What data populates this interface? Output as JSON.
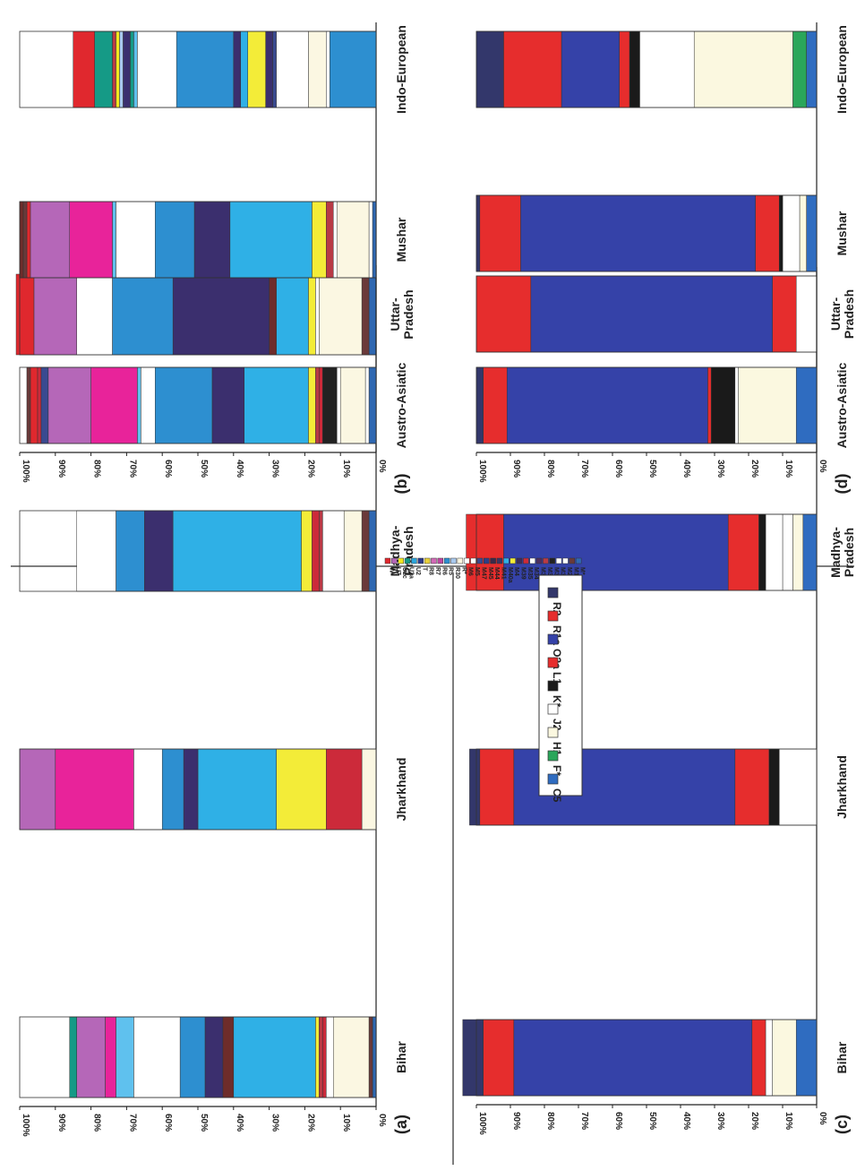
{
  "colors": {
    "W": "#e0282e",
    "U7": "#b567b8",
    "U2c": "#f2e81e",
    "U2a": "#159a86",
    "U2": "#2da6dc",
    "T": "#2b3a8c",
    "R8": "#e9d03a",
    "R7": "#d26ab7",
    "R6": "#c047a2",
    "R5": "#2d8fd0",
    "R30": "#a9c9ee",
    "R*": "#fbf7e2",
    "M6": "#ffffff",
    "M5": "#ffffff",
    "M47": "#3a4a90",
    "M45": "#2f3e86",
    "M44": "#3a2a4a",
    "M41": "#3d3460",
    "M40a": "#2fb0e6",
    "M4": "#f3ec38",
    "M39": "#3c2d58",
    "M35": "#cc2a3a",
    "M34": "#ffffff",
    "M33": "#4e2f60",
    "M31": "#b83a46",
    "M30": "#222222",
    "M3": "#ffffff",
    "M2": "#ffffff",
    "M18": "#6a3a3a",
    "M*": "#2f68b2",
    "magenta": "#e8239a",
    "lightblue": "#5fc1ee",
    "purple": "#3b2f6e",
    "brown": "#6e2c2a",
    "R2": "#33376b",
    "R1a": "#e62d2d",
    "O2a": "#3542a8",
    "L1": "#e62d2d",
    "K*": "#1a1a1a",
    "J2": "#ffffff",
    "H1": "#fbf8e0",
    "F*": "#2aa65a",
    "C5": "#2f6cc0"
  },
  "legend_mt": [
    "W",
    "U7",
    "U2c",
    "U2a",
    "U2",
    "T",
    "R8",
    "R7",
    "R6",
    "R5",
    "R30",
    "R*",
    "M6",
    "M5",
    "M47",
    "M45",
    "M44",
    "M41",
    "M40a",
    "M4",
    "M39",
    "M35",
    "M34",
    "M33",
    "M31",
    "M30",
    "M3",
    "M2",
    "M18",
    "M*"
  ],
  "legend_y": [
    "R2",
    "R1a",
    "O2a",
    "L1",
    "K*",
    "J2",
    "H1",
    "F*",
    "C5"
  ],
  "chart_data": [
    {
      "id": "a",
      "panel_label": "(a)",
      "type": "bar",
      "ylim": [
        0,
        100
      ],
      "ticks": [
        "100%",
        "90%",
        "80%",
        "70%",
        "60%",
        "50%",
        "40%",
        "30%",
        "20%",
        "10%",
        "0%"
      ],
      "categories": [
        "Bihar",
        "Jharkhand",
        "Madhya-\nPradesh",
        "Uttar-\nPradesh"
      ],
      "stacks": [
        [
          [
            "M*",
            1
          ],
          [
            "M18",
            1
          ],
          [
            "R*",
            10
          ],
          [
            "M3",
            2
          ],
          [
            "M35",
            1
          ],
          [
            "M31",
            1
          ],
          [
            "M4",
            1
          ],
          [
            "M40a",
            23
          ],
          [
            "brown",
            3
          ],
          [
            "purple",
            5
          ],
          [
            "R5",
            7
          ],
          [
            "M6",
            13
          ],
          [
            "lightblue",
            5
          ],
          [
            "magenta",
            3
          ],
          [
            "U7",
            8
          ],
          [
            "U2a",
            2
          ]
        ],
        [
          [
            "R*",
            4
          ],
          [
            "M35",
            10
          ],
          [
            "M4",
            14
          ],
          [
            "M40a",
            22
          ],
          [
            "purple",
            4
          ],
          [
            "R5",
            6
          ],
          [
            "M6",
            8
          ],
          [
            "magenta",
            22
          ],
          [
            "U7",
            10
          ]
        ],
        [
          [
            "M*",
            2
          ],
          [
            "M18",
            2
          ],
          [
            "R*",
            5
          ],
          [
            "M2",
            6
          ],
          [
            "M31",
            1
          ],
          [
            "M35",
            2
          ],
          [
            "M4",
            3
          ],
          [
            "M40a",
            36
          ],
          [
            "purple",
            8
          ],
          [
            "R5",
            8
          ],
          [
            "M6",
            11
          ]
        ],
        [
          [
            "M*",
            2
          ],
          [
            "M18",
            2
          ],
          [
            "R*",
            12
          ],
          [
            "M2",
            1
          ],
          [
            "M4",
            2
          ],
          [
            "M40a",
            9
          ],
          [
            "brown",
            2
          ],
          [
            "purple",
            27
          ],
          [
            "R5",
            17
          ],
          [
            "M6",
            10
          ],
          [
            "U7",
            12
          ],
          [
            "W",
            5
          ]
        ]
      ]
    },
    {
      "id": "b",
      "panel_label": "(b)",
      "type": "bar",
      "ylim": [
        0,
        100
      ],
      "ticks": [
        "100%",
        "90%",
        "80%",
        "70%",
        "60%",
        "50%",
        "40%",
        "30%",
        "20%",
        "10%",
        "0%"
      ],
      "categories": [
        "Austro-Asiatic",
        "Mushar",
        "Indo-European"
      ],
      "stacks": [
        [
          [
            "M*",
            2
          ],
          [
            "M2",
            1
          ],
          [
            "R*",
            7
          ],
          [
            "M3",
            1
          ],
          [
            "M30",
            4
          ],
          [
            "M35",
            1
          ],
          [
            "M31",
            1
          ],
          [
            "M4",
            2
          ],
          [
            "M40a",
            18
          ],
          [
            "purple",
            9
          ],
          [
            "R5",
            16
          ],
          [
            "M6",
            4
          ],
          [
            "lightblue",
            1
          ],
          [
            "magenta",
            13
          ],
          [
            "U7",
            12
          ],
          [
            "M47",
            2
          ],
          [
            "M35",
            1
          ],
          [
            "W",
            2
          ],
          [
            "M18",
            1
          ]
        ],
        [
          [
            "M*",
            1
          ],
          [
            "M2",
            1
          ],
          [
            "R*",
            9
          ],
          [
            "M3",
            1
          ],
          [
            "M31",
            2
          ],
          [
            "M4",
            4
          ],
          [
            "M40a",
            23
          ],
          [
            "purple",
            10
          ],
          [
            "R5",
            11
          ],
          [
            "M6",
            11
          ],
          [
            "lightblue",
            1
          ],
          [
            "magenta",
            12
          ],
          [
            "U7",
            11
          ],
          [
            "W",
            1
          ],
          [
            "M18",
            1
          ],
          [
            "brown",
            1
          ]
        ],
        [
          [
            "R5",
            13
          ],
          [
            "M2",
            1
          ],
          [
            "R*",
            5
          ],
          [
            "M3",
            9
          ],
          [
            "M47",
            1
          ],
          [
            "purple",
            2
          ],
          [
            "M4",
            5
          ],
          [
            "M40a",
            2
          ],
          [
            "purple",
            2
          ],
          [
            "R5",
            16
          ],
          [
            "M6",
            11
          ],
          [
            "lightblue",
            1
          ],
          [
            "U2a",
            1
          ],
          [
            "purple",
            2
          ],
          [
            "R30",
            1
          ],
          [
            "U2c",
            1
          ],
          [
            "M31",
            1
          ],
          [
            "U2a",
            5
          ],
          [
            "W",
            6
          ]
        ]
      ]
    },
    {
      "id": "c",
      "panel_label": "(c)",
      "type": "bar",
      "ylim": [
        0,
        100
      ],
      "ticks": [
        "100%",
        "90%",
        "80%",
        "70%",
        "60%",
        "50%",
        "40%",
        "30%",
        "20%",
        "10%",
        "0%"
      ],
      "categories": [
        "Bihar",
        "Jharkhand",
        "Madhya-\nPradesh",
        "Uttar-\nPradesh"
      ],
      "stacks": [
        [
          [
            "C5",
            6
          ],
          [
            "H1",
            7
          ],
          [
            "J2",
            2
          ],
          [
            "L1",
            4
          ],
          [
            "O2a",
            70
          ],
          [
            "R1a",
            9
          ],
          [
            "R2",
            6
          ]
        ],
        [
          [
            "J2",
            11
          ],
          [
            "K*",
            3
          ],
          [
            "L1",
            10
          ],
          [
            "O2a",
            65
          ],
          [
            "R1a",
            10
          ],
          [
            "R2",
            3
          ]
        ],
        [
          [
            "C5",
            4
          ],
          [
            "H1",
            3
          ],
          [
            "J2",
            3
          ],
          [
            "J2",
            5
          ],
          [
            "K*",
            2
          ],
          [
            "L1",
            9
          ],
          [
            "O2a",
            66
          ],
          [
            "R1a",
            11
          ]
        ],
        [
          [
            "J2",
            6
          ],
          [
            "L1",
            7
          ],
          [
            "O2a",
            71
          ],
          [
            "R1a",
            16
          ]
        ]
      ]
    },
    {
      "id": "d",
      "panel_label": "(d)",
      "type": "bar",
      "ylim": [
        0,
        100
      ],
      "ticks": [
        "100%",
        "90%",
        "80%",
        "70%",
        "60%",
        "50%",
        "40%",
        "30%",
        "20%",
        "10%",
        "0%"
      ],
      "categories": [
        "Austro-Asiatic",
        "Mushar",
        "Indo-European"
      ],
      "stacks": [
        [
          [
            "C5",
            6
          ],
          [
            "H1",
            17
          ],
          [
            "J2",
            1
          ],
          [
            "K*",
            7
          ],
          [
            "L1",
            1
          ],
          [
            "O2a",
            59
          ],
          [
            "R1a",
            7
          ],
          [
            "R2",
            2
          ]
        ],
        [
          [
            "C5",
            3
          ],
          [
            "H1",
            2
          ],
          [
            "J2",
            5
          ],
          [
            "K*",
            1
          ],
          [
            "L1",
            7
          ],
          [
            "O2a",
            69
          ],
          [
            "R1a",
            12
          ],
          [
            "R2",
            1
          ]
        ],
        [
          [
            "C5",
            3
          ],
          [
            "F*",
            4
          ],
          [
            "H1",
            29
          ],
          [
            "J2",
            16
          ],
          [
            "K*",
            3
          ],
          [
            "L1",
            3
          ],
          [
            "O2a",
            17
          ],
          [
            "R1a",
            17
          ],
          [
            "R2",
            8
          ]
        ]
      ]
    }
  ]
}
